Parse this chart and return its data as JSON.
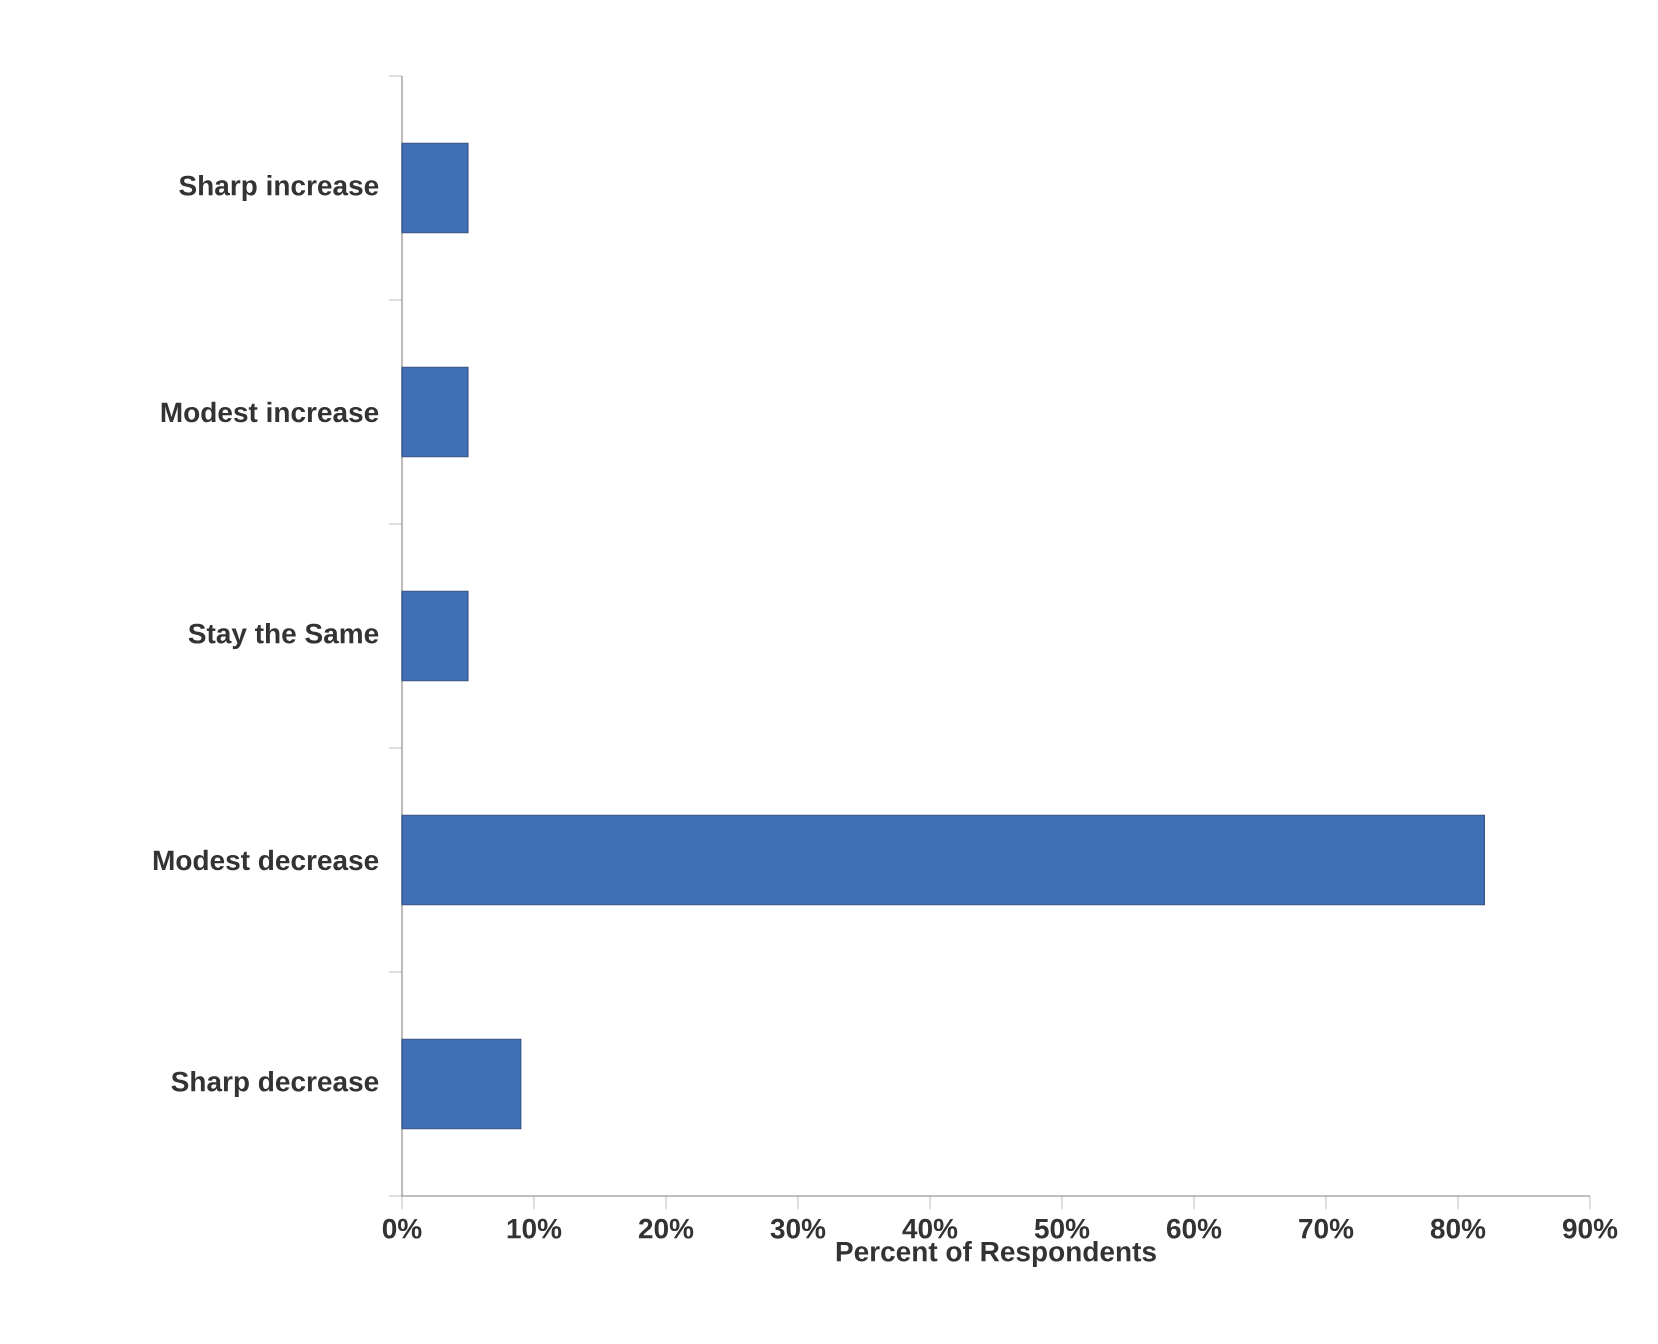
{
  "chart_data": {
    "type": "bar",
    "orientation": "horizontal",
    "xlabel": "Percent of Respondents",
    "categories": [
      "Sharp increase",
      "Modest increase",
      "Stay the Same",
      "Modest decrease",
      "Sharp decrease"
    ],
    "values": [
      5,
      5,
      5,
      82,
      9
    ],
    "color": "#3f6fb5",
    "xlim": [
      0,
      90
    ],
    "xticks": [
      {
        "value": 0,
        "label": "0%"
      },
      {
        "value": 10,
        "label": "10%"
      },
      {
        "value": 20,
        "label": "20%"
      },
      {
        "value": 30,
        "label": "30%"
      },
      {
        "value": 40,
        "label": "40%"
      },
      {
        "value": 50,
        "label": "50%"
      },
      {
        "value": 60,
        "label": "60%"
      },
      {
        "value": 70,
        "label": "70%"
      },
      {
        "value": 80,
        "label": "80%"
      },
      {
        "value": 90,
        "label": "90%"
      }
    ]
  }
}
